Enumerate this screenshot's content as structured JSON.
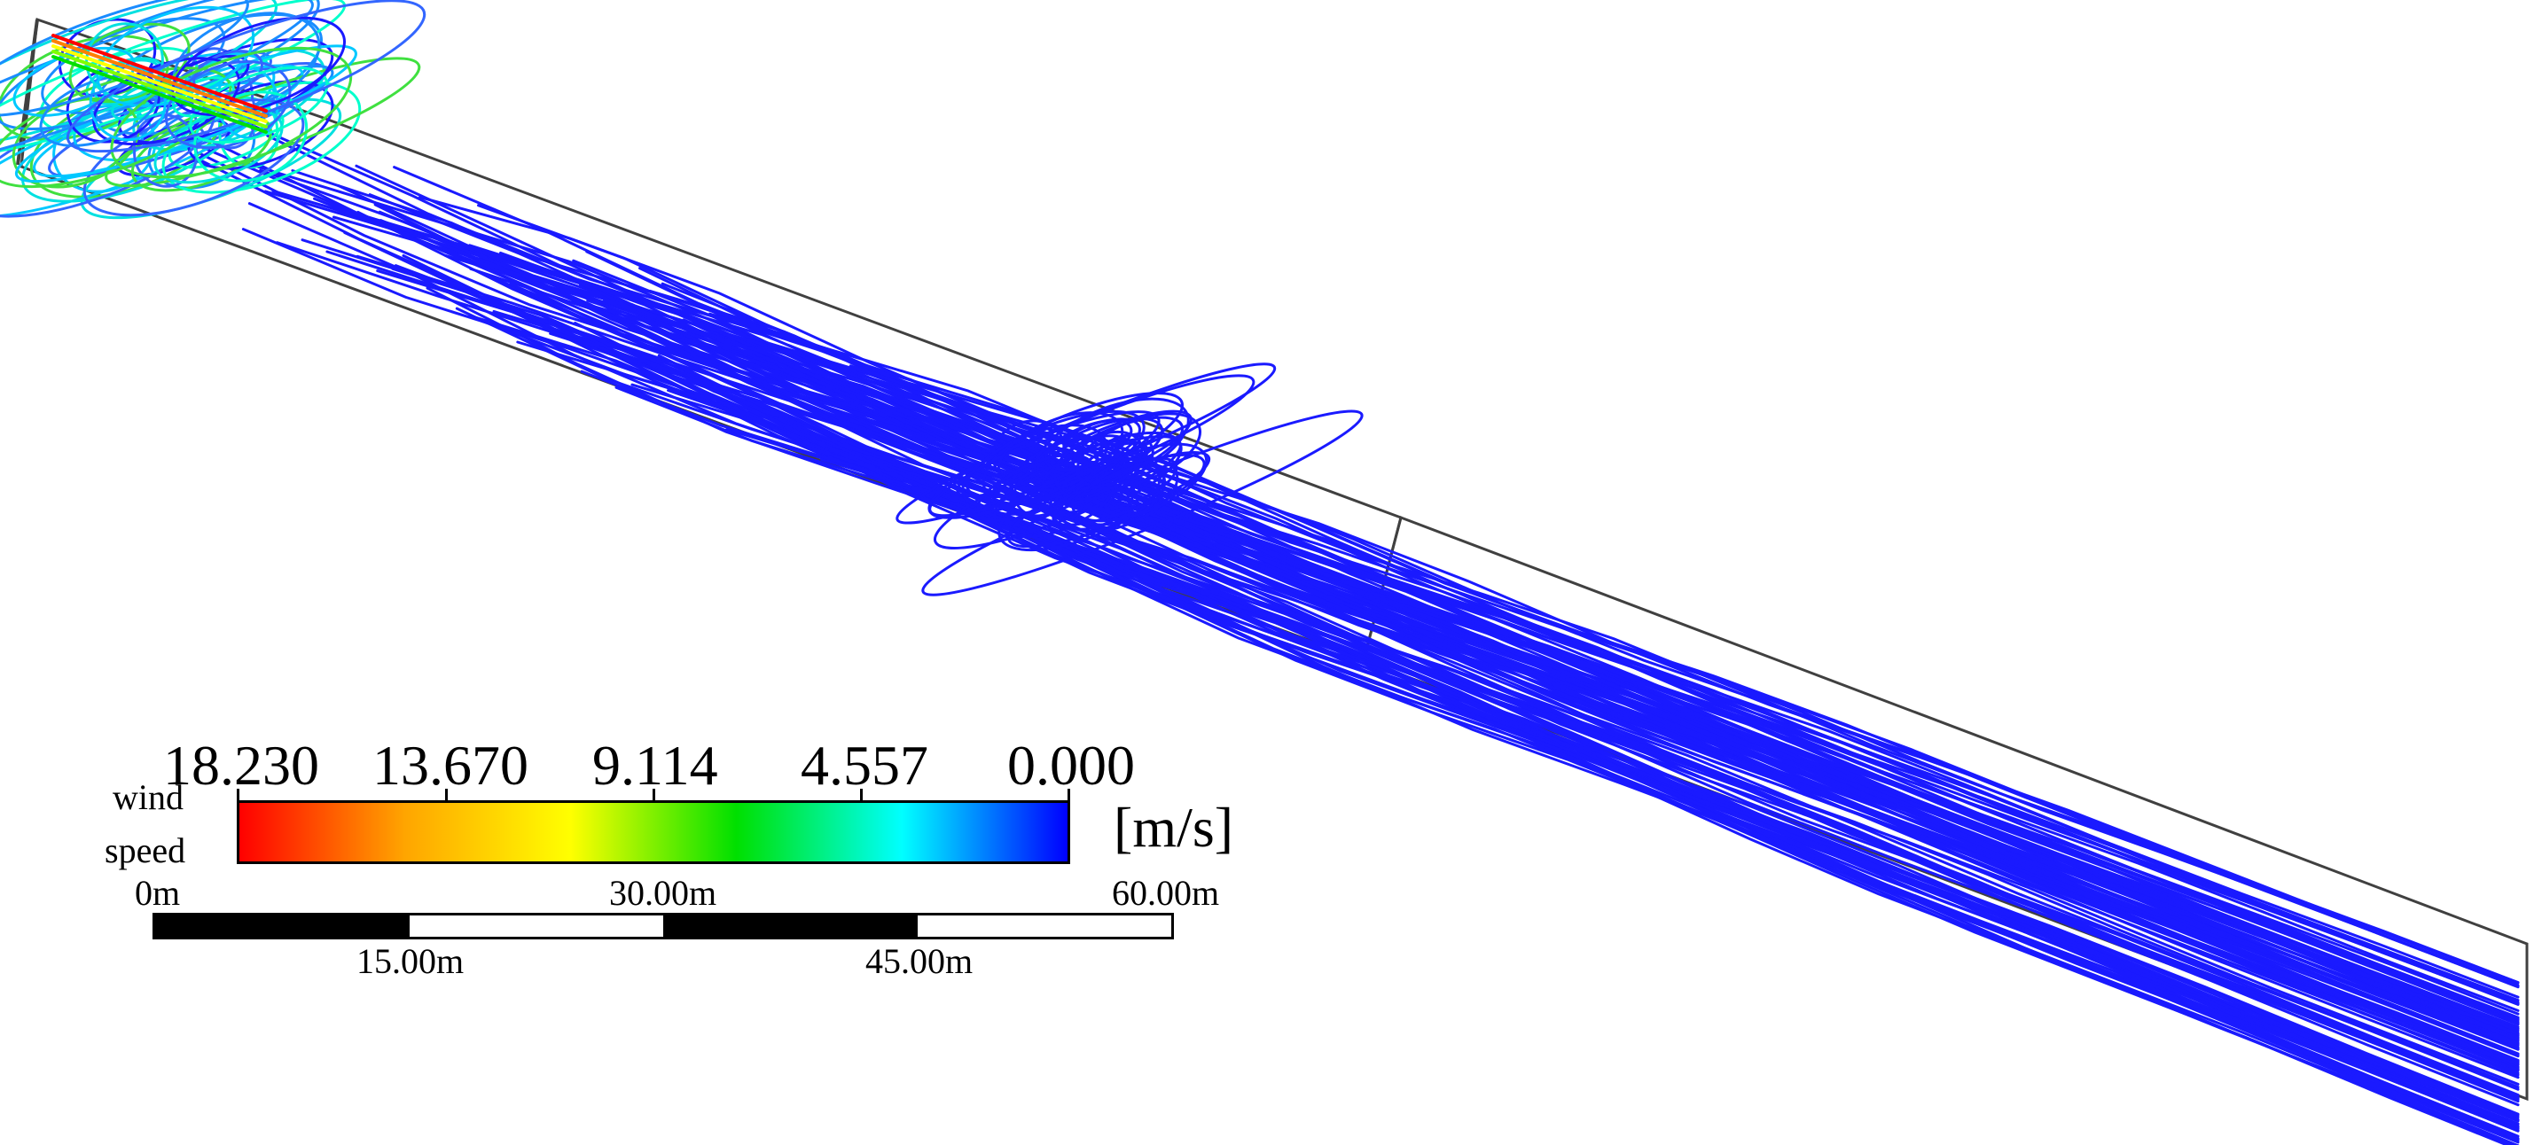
{
  "legend": {
    "title_line1": "wind",
    "title_line2": "speed",
    "unit": "[m/s]",
    "ticks": [
      "18.230",
      "13.670",
      "9.114",
      "4.557",
      "0.000"
    ],
    "colormap": [
      "#ff0000",
      "#ffa500",
      "#ffff00",
      "#00e000",
      "#00ffff",
      "#0000ff"
    ]
  },
  "scale_bar": {
    "labels_top": [
      "0m",
      "30.00m",
      "60.00m"
    ],
    "labels_bottom": [
      "15.00m",
      "45.00m"
    ]
  },
  "colors": {
    "streamline_primary": "#1a1aff",
    "domain_outline": "#404040"
  }
}
